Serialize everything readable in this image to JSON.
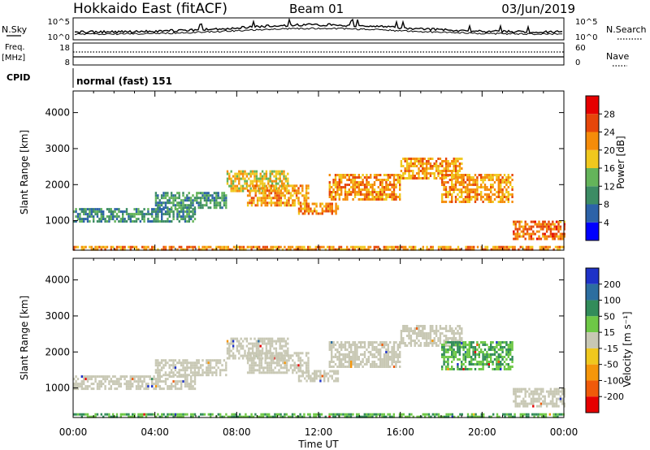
{
  "header": {
    "station": "Hokkaido East (fitACF)",
    "beam": "Beam 01",
    "date": "03/Jun/2019"
  },
  "noise_panel": {
    "left_label": "N.Sky",
    "right_label": "N.Search",
    "left_ticks": [
      "10^5",
      "10^0"
    ],
    "right_ticks": [
      "10^5",
      "10^0"
    ]
  },
  "freq_panel": {
    "left_label_1": "Freq.",
    "left_label_2": "[MHz]",
    "left_ticks": [
      "18",
      "8"
    ],
    "right_label": "Nave",
    "right_ticks": [
      "60",
      "0"
    ]
  },
  "cpid_panel": {
    "label": "CPID",
    "mode": "normal (fast) 151"
  },
  "chart_data": [
    {
      "type": "heatmap",
      "name": "power",
      "ylabel": "Slant Range [km]",
      "ylim": [
        180,
        4600
      ],
      "yticks": [
        "1000",
        "2000",
        "3000",
        "4000"
      ],
      "xlim": [
        0,
        24
      ],
      "colorbar_label": "Power [dB]",
      "colorbar_ticks": [
        "4",
        "8",
        "12",
        "16",
        "20",
        "24",
        "28"
      ],
      "colorbar_colors": [
        "#0000ff",
        "#2c62a8",
        "#3c8c64",
        "#64b45a",
        "#f0c81e",
        "#f58c0a",
        "#e6460a",
        "#e60000"
      ],
      "bands": [
        {
          "start": 0.0,
          "end": 6.0,
          "low": 1000,
          "high": 1350,
          "value": 10
        },
        {
          "start": 4.0,
          "end": 7.5,
          "low": 1350,
          "high": 1800,
          "value": 11
        },
        {
          "start": 7.5,
          "end": 10.5,
          "low": 1800,
          "high": 2400,
          "value": 18
        },
        {
          "start": 8.5,
          "end": 11.5,
          "low": 1400,
          "high": 2000,
          "value": 21
        },
        {
          "start": 11.0,
          "end": 13.0,
          "low": 1200,
          "high": 1500,
          "value": 22
        },
        {
          "start": 12.5,
          "end": 16.0,
          "low": 1600,
          "high": 2300,
          "value": 22
        },
        {
          "start": 16.0,
          "end": 19.0,
          "low": 2200,
          "high": 2750,
          "value": 21
        },
        {
          "start": 18.0,
          "end": 21.5,
          "low": 1500,
          "high": 2300,
          "value": 21
        },
        {
          "start": 21.5,
          "end": 24.0,
          "low": 500,
          "high": 1000,
          "value": 24
        },
        {
          "start": 0.0,
          "end": 24.0,
          "low": 180,
          "high": 300,
          "value": 22
        }
      ]
    },
    {
      "type": "heatmap",
      "name": "velocity",
      "ylabel": "Slant Range [km]",
      "ylim": [
        180,
        4600
      ],
      "yticks": [
        "1000",
        "2000",
        "3000",
        "4000"
      ],
      "xlim": [
        0,
        24
      ],
      "xticks": [
        "00:00",
        "04:00",
        "08:00",
        "12:00",
        "16:00",
        "20:00",
        "00:00"
      ],
      "xlabel": "Time UT",
      "colorbar_label": "Velocity [m s⁻¹]",
      "colorbar_ticks": [
        "200",
        "100",
        "50",
        "15",
        "-15",
        "-50",
        "-100",
        "-200"
      ],
      "colorbar_colors": [
        "#1e32c8",
        "#2c6ea0",
        "#328c5a",
        "#6ec846",
        "#c8c8b4",
        "#f0c81e",
        "#f5960a",
        "#f05a0a",
        "#e60000"
      ],
      "bands": [
        {
          "start": 0.0,
          "end": 6.0,
          "low": 1000,
          "high": 1350,
          "value": 0
        },
        {
          "start": 4.0,
          "end": 7.5,
          "low": 1350,
          "high": 1800,
          "value": 0
        },
        {
          "start": 7.5,
          "end": 10.5,
          "low": 1800,
          "high": 2400,
          "value": 0
        },
        {
          "start": 8.5,
          "end": 11.5,
          "low": 1400,
          "high": 2000,
          "value": 0
        },
        {
          "start": 11.0,
          "end": 13.0,
          "low": 1200,
          "high": 1500,
          "value": 0
        },
        {
          "start": 12.5,
          "end": 16.0,
          "low": 1600,
          "high": 2300,
          "value": 0
        },
        {
          "start": 16.0,
          "end": 19.0,
          "low": 2200,
          "high": 2750,
          "value": 0
        },
        {
          "start": 18.0,
          "end": 21.5,
          "low": 1500,
          "high": 2300,
          "value": 30
        },
        {
          "start": 21.5,
          "end": 24.0,
          "low": 500,
          "high": 1000,
          "value": 0
        },
        {
          "start": 0.0,
          "end": 24.0,
          "low": 180,
          "high": 300,
          "value": 30
        }
      ]
    }
  ]
}
